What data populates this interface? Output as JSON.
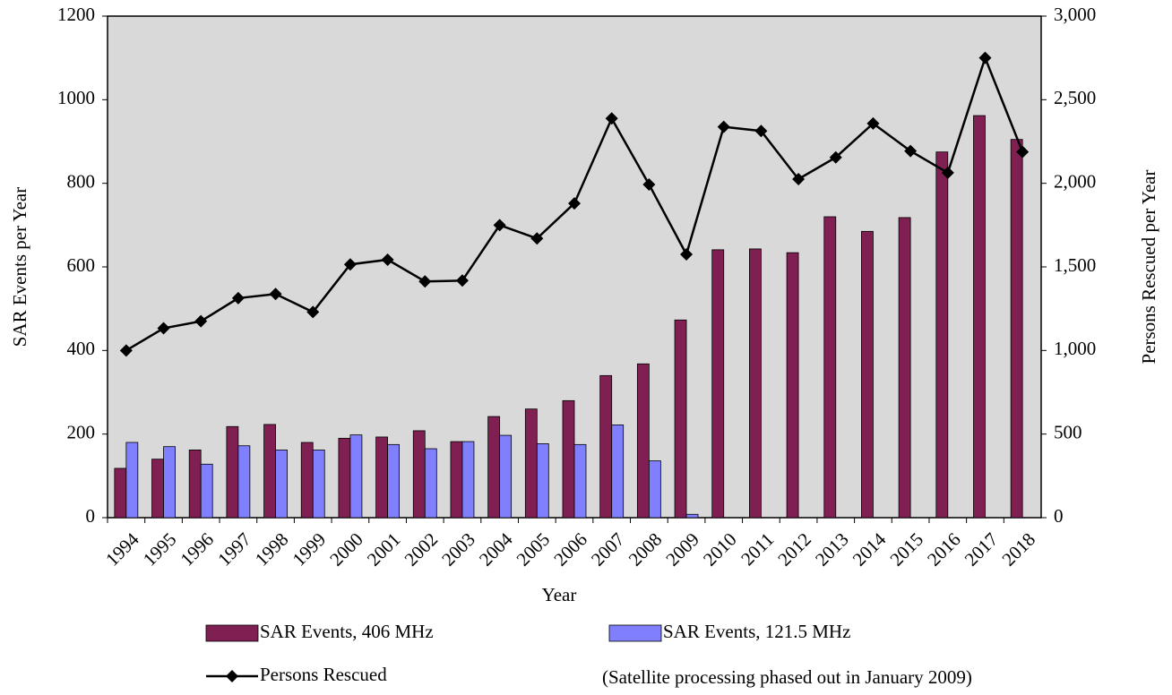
{
  "chart_data": {
    "type": "bar",
    "x_label": "Year",
    "y_label": "SAR Events per Year",
    "y2_label": "Persons Rescued per Year",
    "annotation": "(Satellite processing phased out in January 2009)",
    "categories": [
      "1994",
      "1995",
      "1996",
      "1997",
      "1998",
      "1999",
      "2000",
      "2001",
      "2002",
      "2003",
      "2004",
      "2005",
      "2006",
      "2007",
      "2008",
      "2009",
      "2010",
      "2011",
      "2012",
      "2013",
      "2014",
      "2015",
      "2016",
      "2017",
      "2018"
    ],
    "series": [
      {
        "name": "SAR Events, 406 MHz",
        "color": "#7f1f52",
        "type": "bar",
        "values": [
          118,
          140,
          162,
          218,
          223,
          180,
          190,
          193,
          208,
          182,
          242,
          260,
          280,
          340,
          368,
          473,
          641,
          643,
          634,
          720,
          685,
          718,
          875,
          962,
          905
        ]
      },
      {
        "name": "SAR Events, 121.5 MHz",
        "color": "#8080ff",
        "type": "bar",
        "values": [
          180,
          170,
          128,
          172,
          162,
          162,
          198,
          175,
          165,
          182,
          197,
          177,
          175,
          222,
          136,
          8,
          null,
          null,
          null,
          null,
          null,
          null,
          null,
          null,
          null
        ]
      },
      {
        "name": "Persons Rescued",
        "color": "#000000",
        "type": "line",
        "axis": "y2",
        "values": [
          1000,
          1133,
          1175,
          1313,
          1338,
          1230,
          1515,
          1543,
          1413,
          1418,
          1750,
          1670,
          1880,
          2388,
          1993,
          1575,
          2338,
          2313,
          2025,
          2155,
          2358,
          2193,
          2063,
          2750,
          2188
        ]
      }
    ],
    "ylim": [
      0,
      1200
    ],
    "yticks": [
      0,
      200,
      400,
      600,
      800,
      1000,
      1200
    ],
    "y2lim": [
      0,
      3000
    ],
    "y2ticks": [
      0,
      500,
      {
        "value": 1000,
        "label": "1,000"
      },
      {
        "value": 1500,
        "label": "1,500"
      },
      {
        "value": 2000,
        "label": "2,000"
      },
      {
        "value": 2500,
        "label": "2,500"
      },
      {
        "value": 3000,
        "label": "3,000"
      }
    ],
    "plot_background": "#d9d9d9"
  }
}
